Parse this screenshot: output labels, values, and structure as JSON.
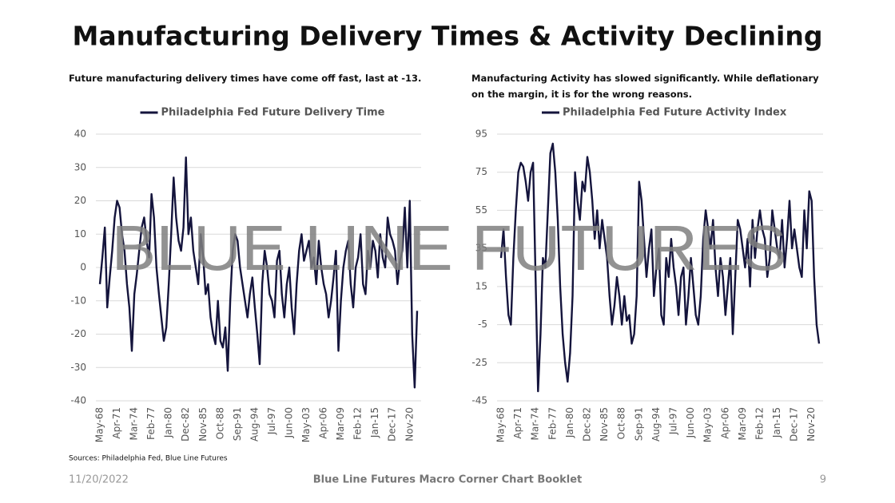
{
  "title": "Manufacturing Delivery Times & Activity Declining",
  "watermark": "BLUE LINE FUTURES",
  "source": "Sources: Philadelphia Fed, Blue Line Futures",
  "footer": {
    "date": "11/20/2022",
    "booklet": "Blue Line Futures Macro Corner Chart Booklet",
    "page": "9"
  },
  "chart_data": [
    {
      "type": "line",
      "subtitle": "Future manufacturing delivery times have come off fast, last at -13.",
      "categories": [
        "May-68",
        null,
        null,
        null,
        null,
        null,
        null,
        "Apr-71",
        null,
        null,
        null,
        null,
        null,
        null,
        "Mar-74",
        null,
        null,
        null,
        null,
        null,
        null,
        "Feb-77",
        null,
        null,
        null,
        null,
        null,
        null,
        "Jan-80",
        null,
        null,
        null,
        null,
        null,
        null,
        "Dec-82",
        null,
        null,
        null,
        null,
        null,
        null,
        "Nov-85",
        null,
        null,
        null,
        null,
        null,
        null,
        "Oct-88",
        null,
        null,
        null,
        null,
        null,
        null,
        "Sep-91",
        null,
        null,
        null,
        null,
        null,
        null,
        "Aug-94",
        null,
        null,
        null,
        null,
        null,
        null,
        "Jul-97",
        null,
        null,
        null,
        null,
        null,
        null,
        "Jun-00",
        null,
        null,
        null,
        null,
        null,
        null,
        "May-03",
        null,
        null,
        null,
        null,
        null,
        null,
        "Apr-06",
        null,
        null,
        null,
        null,
        null,
        null,
        "Mar-09",
        null,
        null,
        null,
        null,
        null,
        null,
        "Feb-12",
        null,
        null,
        null,
        null,
        null,
        null,
        "Jan-15",
        null,
        null,
        null,
        null,
        null,
        null,
        "Dec-17",
        null,
        null,
        null,
        null,
        null,
        null,
        "Nov-20",
        null,
        null,
        null
      ],
      "series": [
        {
          "name": "Philadelphia Fed Future Delivery Time",
          "color": "#14143c",
          "values": [
            -5,
            3,
            12,
            -12,
            -3,
            5,
            15,
            20,
            18,
            10,
            5,
            -5,
            -12,
            -25,
            -8,
            -2,
            5,
            12,
            15,
            8,
            3,
            22,
            15,
            0,
            -8,
            -15,
            -22,
            -18,
            -5,
            10,
            27,
            15,
            8,
            5,
            12,
            33,
            10,
            15,
            5,
            0,
            -5,
            10,
            3,
            -8,
            -5,
            -15,
            -20,
            -23,
            -10,
            -22,
            -24,
            -18,
            -31,
            -10,
            5,
            10,
            8,
            0,
            -5,
            -10,
            -15,
            -8,
            -3,
            -12,
            -20,
            -29,
            -5,
            5,
            0,
            -8,
            -10,
            -15,
            2,
            5,
            -8,
            -15,
            -5,
            0,
            -12,
            -20,
            -5,
            5,
            10,
            2,
            5,
            8,
            0,
            3,
            -5,
            8,
            0,
            -5,
            -8,
            -15,
            -10,
            -3,
            5,
            -25,
            -10,
            0,
            5,
            8,
            -5,
            -12,
            0,
            3,
            10,
            -5,
            -8,
            5,
            0,
            8,
            5,
            -3,
            10,
            3,
            0,
            15,
            10,
            8,
            5,
            -5,
            2,
            5,
            18,
            0,
            20,
            -20,
            -36,
            -13
          ]
        }
      ],
      "ylim": [
        -40,
        40
      ],
      "yticks": [
        -40,
        -30,
        -20,
        -10,
        0,
        10,
        20,
        30,
        40
      ],
      "grid": true
    },
    {
      "type": "line",
      "subtitle": "Manufacturing Activity has slowed significantly. While deflationary on the margin, it is for the wrong reasons.",
      "categories": [
        "May-68",
        null,
        null,
        null,
        null,
        null,
        null,
        "Apr-71",
        null,
        null,
        null,
        null,
        null,
        null,
        "Mar-74",
        null,
        null,
        null,
        null,
        null,
        null,
        "Feb-77",
        null,
        null,
        null,
        null,
        null,
        null,
        "Jan-80",
        null,
        null,
        null,
        null,
        null,
        null,
        "Dec-82",
        null,
        null,
        null,
        null,
        null,
        null,
        "Nov-85",
        null,
        null,
        null,
        null,
        null,
        null,
        "Oct-88",
        null,
        null,
        null,
        null,
        null,
        null,
        "Sep-91",
        null,
        null,
        null,
        null,
        null,
        null,
        "Aug-94",
        null,
        null,
        null,
        null,
        null,
        null,
        "Jul-97",
        null,
        null,
        null,
        null,
        null,
        null,
        "Jun-00",
        null,
        null,
        null,
        null,
        null,
        null,
        "May-03",
        null,
        null,
        null,
        null,
        null,
        null,
        "Apr-06",
        null,
        null,
        null,
        null,
        null,
        null,
        "Mar-09",
        null,
        null,
        null,
        null,
        null,
        null,
        "Feb-12",
        null,
        null,
        null,
        null,
        null,
        null,
        "Jan-15",
        null,
        null,
        null,
        null,
        null,
        null,
        "Dec-17",
        null,
        null,
        null,
        null,
        null,
        null,
        "Nov-20",
        null,
        null,
        null
      ],
      "series": [
        {
          "name": "Philadelphia Fed Future Activity Index",
          "color": "#14143c",
          "values": [
            30,
            45,
            20,
            0,
            -5,
            30,
            55,
            75,
            80,
            78,
            70,
            60,
            75,
            80,
            20,
            -40,
            -10,
            30,
            25,
            55,
            85,
            90,
            75,
            50,
            15,
            -10,
            -25,
            -35,
            -20,
            10,
            75,
            60,
            50,
            70,
            65,
            83,
            75,
            60,
            40,
            55,
            35,
            50,
            40,
            30,
            10,
            -5,
            5,
            20,
            10,
            -5,
            10,
            -3,
            0,
            -15,
            -10,
            10,
            70,
            60,
            40,
            20,
            35,
            45,
            10,
            25,
            35,
            0,
            -5,
            30,
            20,
            40,
            25,
            15,
            0,
            20,
            25,
            -5,
            10,
            30,
            15,
            0,
            -5,
            10,
            40,
            55,
            45,
            35,
            50,
            25,
            10,
            30,
            20,
            0,
            15,
            30,
            -10,
            20,
            50,
            45,
            35,
            25,
            40,
            15,
            50,
            30,
            45,
            55,
            45,
            40,
            20,
            30,
            55,
            45,
            35,
            30,
            50,
            25,
            40,
            60,
            35,
            45,
            35,
            25,
            20,
            55,
            35,
            65,
            60,
            20,
            -5,
            -15
          ]
        }
      ],
      "ylim": [
        -45,
        95
      ],
      "yticks": [
        -45,
        -25,
        -5,
        15,
        35,
        55,
        75,
        95
      ],
      "grid": true
    }
  ]
}
